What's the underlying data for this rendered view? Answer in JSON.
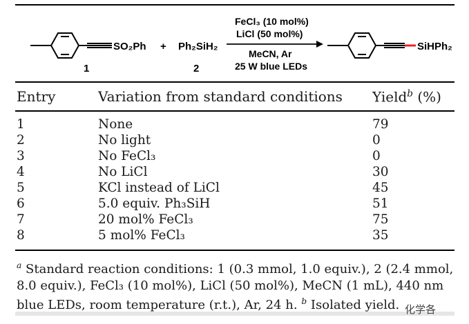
{
  "scheme": {
    "reactant1_group": "SO₂Ph",
    "reactant1_label": "1",
    "plus": "+",
    "reactant2_formula": "Ph₂SiH₂",
    "reactant2_label": "2",
    "cond_above_1": "FeCl₃ (10 mol%)",
    "cond_above_2": "LiCl (50 mol%)",
    "cond_below_1": "MeCN, Ar",
    "cond_below_2": "25 W blue LEDs",
    "product_group": "SiHPh₂"
  },
  "table": {
    "headers": {
      "entry": "Entry",
      "variation": "Variation from standard conditions",
      "yield_word": "Yield",
      "yield_sup": "b",
      "yield_unit": " (%)"
    },
    "rows": [
      {
        "entry": "1",
        "variation": "None",
        "yield": "79"
      },
      {
        "entry": "2",
        "variation": "No light",
        "yield": "0"
      },
      {
        "entry": "3",
        "variation": "No FeCl₃",
        "yield": "0"
      },
      {
        "entry": "4",
        "variation": "No LiCl",
        "yield": "30"
      },
      {
        "entry": "5",
        "variation": "KCl instead of LiCl",
        "yield": "45"
      },
      {
        "entry": "6",
        "variation": "5.0 equiv. Ph₃SiH",
        "yield": "51"
      },
      {
        "entry": "7",
        "variation": "20 mol% FeCl₃",
        "yield": "75"
      },
      {
        "entry": "8",
        "variation": "5 mol% FeCl₃",
        "yield": "35"
      }
    ]
  },
  "footnote": {
    "a_mark": "a",
    "a_text": " Standard reaction conditions: 1 (0.3 mmol, 1.0 equiv.), 2 (2.4 mmol, 8.0 equiv.), FeCl₃ (10 mol%), LiCl (50 mol%), MeCN (1 mL), 440 nm blue LEDs, room temperature (r.t.), Ar, 24 h. ",
    "b_mark": "b",
    "b_text": " Isolated yield."
  },
  "watermark": "化学各",
  "colors": {
    "si_bond": "#e8232a"
  }
}
